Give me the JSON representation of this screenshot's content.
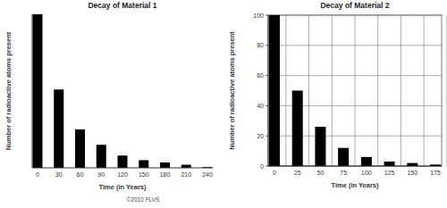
{
  "chart_data": [
    {
      "type": "bar",
      "title": "Decay of Material 1",
      "x_label": "Time (in Years)",
      "y_label": "Number of radioactive atoms present",
      "categories": [
        "0",
        "30",
        "60",
        "90",
        "120",
        "150",
        "180",
        "210",
        "240"
      ],
      "values": [
        100,
        51,
        25,
        15,
        8,
        5,
        3.5,
        2,
        0.5
      ],
      "color": "#000000",
      "ylim": [
        0,
        100
      ],
      "grid": false,
      "tick_labels": "x"
    },
    {
      "type": "bar",
      "title": "Decay of Material 2",
      "x_label": "Time (in Years)",
      "y_label": "Number of radioactive atoms present",
      "categories": [
        "0",
        "25",
        "50",
        "75",
        "100",
        "125",
        "150",
        "175"
      ],
      "values": [
        100,
        50,
        26,
        12,
        6,
        3,
        2,
        1
      ],
      "color": "#000000",
      "ylim": [
        0,
        100
      ],
      "yticks": [
        0,
        20,
        40,
        60,
        80,
        100
      ],
      "grid": true
    }
  ],
  "credit": "©2010 FLVS"
}
